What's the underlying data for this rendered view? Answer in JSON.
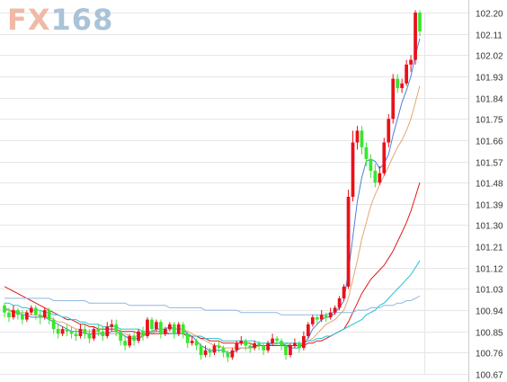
{
  "watermark": {
    "prefix": "FX",
    "digits": "168"
  },
  "colors": {
    "up": "#e8111b",
    "down": "#39e62e",
    "grid": "#e6e6e6",
    "axis_text": "#333333",
    "ma_blue": "#4f7fd6",
    "ma_orange": "#e3a673",
    "ma_red": "#e01b1b",
    "ma_cyan": "#25c2d6",
    "ma_lightblue": "#90b7e3"
  },
  "chart_data": {
    "type": "candlestick",
    "title": "",
    "y_ticks": [
      "102.20",
      "102.11",
      "102.02",
      "101.93",
      "101.84",
      "101.75",
      "101.66",
      "101.57",
      "101.48",
      "101.39",
      "101.30",
      "101.21",
      "101.12",
      "101.03",
      "100.94",
      "100.85",
      "100.76",
      "100.67"
    ],
    "ylim": [
      100.67,
      102.2
    ],
    "grid": true,
    "x_count": 95,
    "candles": [
      [
        100.96,
        100.93,
        100.91,
        100.97
      ],
      [
        100.93,
        100.91,
        100.89,
        100.95
      ],
      [
        100.91,
        100.94,
        100.9,
        100.96
      ],
      [
        100.94,
        100.92,
        100.9,
        100.95
      ],
      [
        100.92,
        100.9,
        100.88,
        100.94
      ],
      [
        100.9,
        100.93,
        100.89,
        100.94
      ],
      [
        100.93,
        100.95,
        100.92,
        100.96
      ],
      [
        100.95,
        100.92,
        100.9,
        100.96
      ],
      [
        100.92,
        100.91,
        100.88,
        100.94
      ],
      [
        100.91,
        100.94,
        100.9,
        100.95
      ],
      [
        100.94,
        100.9,
        100.88,
        100.95
      ],
      [
        100.9,
        100.86,
        100.84,
        100.91
      ],
      [
        100.86,
        100.84,
        100.82,
        100.88
      ],
      [
        100.84,
        100.86,
        100.83,
        100.87
      ],
      [
        100.86,
        100.85,
        100.83,
        100.88
      ],
      [
        100.85,
        100.84,
        100.82,
        100.87
      ],
      [
        100.84,
        100.83,
        100.81,
        100.86
      ],
      [
        100.83,
        100.86,
        100.82,
        100.88
      ],
      [
        100.86,
        100.84,
        100.82,
        100.88
      ],
      [
        100.84,
        100.82,
        100.8,
        100.86
      ],
      [
        100.82,
        100.86,
        100.81,
        100.87
      ],
      [
        100.86,
        100.85,
        100.83,
        100.88
      ],
      [
        100.85,
        100.83,
        100.81,
        100.87
      ],
      [
        100.83,
        100.87,
        100.82,
        100.89
      ],
      [
        100.87,
        100.88,
        100.85,
        100.9
      ],
      [
        100.88,
        100.85,
        100.83,
        100.9
      ],
      [
        100.85,
        100.81,
        100.79,
        100.86
      ],
      [
        100.81,
        100.79,
        100.77,
        100.83
      ],
      [
        100.79,
        100.83,
        100.78,
        100.84
      ],
      [
        100.83,
        100.81,
        100.79,
        100.85
      ],
      [
        100.81,
        100.85,
        100.8,
        100.86
      ],
      [
        100.85,
        100.83,
        100.81,
        100.87
      ],
      [
        100.83,
        100.9,
        100.82,
        100.91
      ],
      [
        100.9,
        100.86,
        100.84,
        100.91
      ],
      [
        100.86,
        100.89,
        100.85,
        100.9
      ],
      [
        100.89,
        100.84,
        100.82,
        100.9
      ],
      [
        100.84,
        100.86,
        100.83,
        100.87
      ],
      [
        100.86,
        100.88,
        100.85,
        100.89
      ],
      [
        100.88,
        100.84,
        100.82,
        100.89
      ],
      [
        100.84,
        100.88,
        100.83,
        100.89
      ],
      [
        100.88,
        100.84,
        100.82,
        100.89
      ],
      [
        100.84,
        100.8,
        100.78,
        100.85
      ],
      [
        100.8,
        100.81,
        100.79,
        100.83
      ],
      [
        100.81,
        100.79,
        100.77,
        100.82
      ],
      [
        100.79,
        100.75,
        100.73,
        100.8
      ],
      [
        100.75,
        100.77,
        100.74,
        100.79
      ],
      [
        100.77,
        100.76,
        100.74,
        100.78
      ],
      [
        100.76,
        100.79,
        100.75,
        100.8
      ],
      [
        100.79,
        100.78,
        100.76,
        100.81
      ],
      [
        100.78,
        100.76,
        100.74,
        100.79
      ],
      [
        100.76,
        100.74,
        100.72,
        100.77
      ],
      [
        100.74,
        100.77,
        100.73,
        100.78
      ],
      [
        100.77,
        100.8,
        100.76,
        100.81
      ],
      [
        100.8,
        100.81,
        100.79,
        100.83
      ],
      [
        100.81,
        100.79,
        100.77,
        100.82
      ],
      [
        100.79,
        100.78,
        100.76,
        100.8
      ],
      [
        100.78,
        100.8,
        100.77,
        100.81
      ],
      [
        100.8,
        100.79,
        100.77,
        100.81
      ],
      [
        100.79,
        100.77,
        100.75,
        100.8
      ],
      [
        100.77,
        100.8,
        100.76,
        100.81
      ],
      [
        100.8,
        100.82,
        100.79,
        100.84
      ],
      [
        100.82,
        100.81,
        100.79,
        100.83
      ],
      [
        100.81,
        100.79,
        100.77,
        100.82
      ],
      [
        100.79,
        100.75,
        100.73,
        100.8
      ],
      [
        100.75,
        100.79,
        100.74,
        100.8
      ],
      [
        100.79,
        100.8,
        100.78,
        100.82
      ],
      [
        100.8,
        100.78,
        100.76,
        100.81
      ],
      [
        100.78,
        100.83,
        100.77,
        100.85
      ],
      [
        100.83,
        100.88,
        100.82,
        100.89
      ],
      [
        100.88,
        100.91,
        100.87,
        100.92
      ],
      [
        100.91,
        100.9,
        100.88,
        100.92
      ],
      [
        100.9,
        100.92,
        100.89,
        100.94
      ],
      [
        100.92,
        100.91,
        100.89,
        100.93
      ],
      [
        100.91,
        100.93,
        100.9,
        100.95
      ],
      [
        100.93,
        100.95,
        100.92,
        100.96
      ],
      [
        100.95,
        100.99,
        100.94,
        101.0
      ],
      [
        100.99,
        101.04,
        100.98,
        101.05
      ],
      [
        101.04,
        101.42,
        101.03,
        101.45
      ],
      [
        101.42,
        101.65,
        101.4,
        101.7
      ],
      [
        101.65,
        101.7,
        101.62,
        101.72
      ],
      [
        101.7,
        101.63,
        101.6,
        101.72
      ],
      [
        101.63,
        101.58,
        101.55,
        101.65
      ],
      [
        101.58,
        101.53,
        101.5,
        101.6
      ],
      [
        101.53,
        101.48,
        101.46,
        101.56
      ],
      [
        101.48,
        101.52,
        101.47,
        101.55
      ],
      [
        101.52,
        101.65,
        101.51,
        101.67
      ],
      [
        101.65,
        101.75,
        101.63,
        101.77
      ],
      [
        101.75,
        101.92,
        101.73,
        101.94
      ],
      [
        101.92,
        101.88,
        101.86,
        101.94
      ],
      [
        101.88,
        101.9,
        101.86,
        101.92
      ],
      [
        101.9,
        101.98,
        101.89,
        102.0
      ],
      [
        101.98,
        102.0,
        101.95,
        102.02
      ],
      [
        102.0,
        102.2,
        101.98,
        102.21
      ],
      [
        102.2,
        102.12,
        102.1,
        102.21
      ]
    ],
    "moving_averages": [
      {
        "color_key": "ma_blue",
        "values": [
          100.95,
          100.94,
          100.93,
          100.93,
          100.92,
          100.92,
          100.91,
          100.91,
          100.91,
          100.91,
          100.9,
          100.89,
          100.88,
          100.87,
          100.86,
          100.85,
          100.85,
          100.85,
          100.84,
          100.84,
          100.84,
          100.84,
          100.84,
          100.84,
          100.85,
          100.85,
          100.84,
          100.83,
          100.82,
          100.82,
          100.82,
          100.83,
          100.84,
          100.85,
          100.86,
          100.86,
          100.86,
          100.87,
          100.86,
          100.86,
          100.86,
          100.84,
          100.83,
          100.81,
          100.79,
          100.78,
          100.77,
          100.77,
          100.77,
          100.77,
          100.76,
          100.76,
          100.77,
          100.78,
          100.78,
          100.78,
          100.79,
          100.79,
          100.79,
          100.79,
          100.8,
          100.8,
          100.8,
          100.79,
          100.78,
          100.78,
          100.78,
          100.8,
          100.82,
          100.86,
          100.88,
          100.9,
          100.91,
          100.91,
          100.93,
          100.95,
          100.98,
          101.1,
          101.25,
          101.4,
          101.5,
          101.57,
          101.58,
          101.57,
          101.54,
          101.56,
          101.6,
          101.68,
          101.75,
          101.82,
          101.87,
          101.93,
          102.02,
          102.09
        ]
      },
      {
        "color_key": "ma_orange",
        "values": [
          100.94,
          100.94,
          100.94,
          100.93,
          100.93,
          100.93,
          100.92,
          100.92,
          100.92,
          100.91,
          100.91,
          100.9,
          100.89,
          100.89,
          100.88,
          100.87,
          100.86,
          100.86,
          100.85,
          100.85,
          100.85,
          100.85,
          100.84,
          100.84,
          100.84,
          100.84,
          100.84,
          100.84,
          100.83,
          100.83,
          100.83,
          100.83,
          100.84,
          100.84,
          100.85,
          100.85,
          100.85,
          100.86,
          100.86,
          100.86,
          100.86,
          100.85,
          100.84,
          100.83,
          100.82,
          100.81,
          100.8,
          100.79,
          100.79,
          100.78,
          100.78,
          100.78,
          100.78,
          100.78,
          100.78,
          100.78,
          100.78,
          100.79,
          100.79,
          100.79,
          100.79,
          100.8,
          100.8,
          100.8,
          100.79,
          100.79,
          100.79,
          100.8,
          100.81,
          100.82,
          100.84,
          100.86,
          100.88,
          100.89,
          100.9,
          100.92,
          100.94,
          100.99,
          101.07,
          101.15,
          101.24,
          101.31,
          101.38,
          101.43,
          101.47,
          101.51,
          101.55,
          101.59,
          101.63,
          101.66,
          101.7,
          101.75,
          101.82,
          101.89
        ]
      },
      {
        "color_key": "ma_red",
        "values": [
          101.04,
          101.03,
          101.02,
          101.01,
          101.0,
          100.99,
          100.98,
          100.97,
          100.96,
          100.95,
          100.94,
          100.93,
          100.92,
          100.91,
          100.9,
          100.9,
          100.89,
          100.88,
          100.88,
          100.87,
          100.87,
          100.86,
          100.86,
          100.86,
          100.86,
          100.86,
          100.85,
          100.85,
          100.85,
          100.85,
          100.84,
          100.84,
          100.84,
          100.84,
          100.84,
          100.84,
          100.84,
          100.84,
          100.84,
          100.84,
          100.84,
          100.83,
          100.83,
          100.83,
          100.82,
          100.82,
          100.81,
          100.81,
          100.81,
          100.8,
          100.8,
          100.8,
          100.8,
          100.8,
          100.8,
          100.8,
          100.79,
          100.79,
          100.79,
          100.79,
          100.79,
          100.79,
          100.79,
          100.79,
          100.79,
          100.79,
          100.79,
          100.79,
          100.8,
          100.8,
          100.81,
          100.81,
          100.82,
          100.83,
          100.84,
          100.85,
          100.86,
          100.89,
          100.93,
          100.97,
          101.01,
          101.04,
          101.07,
          101.09,
          101.11,
          101.13,
          101.16,
          101.19,
          101.23,
          101.27,
          101.31,
          101.36,
          101.42,
          101.48
        ]
      },
      {
        "color_key": "ma_cyan",
        "values": [
          100.97,
          100.97,
          100.96,
          100.96,
          100.95,
          100.95,
          100.94,
          100.94,
          100.94,
          100.93,
          100.93,
          100.92,
          100.92,
          100.91,
          100.91,
          100.9,
          100.9,
          100.89,
          100.89,
          100.88,
          100.88,
          100.88,
          100.87,
          100.87,
          100.87,
          100.87,
          100.86,
          100.86,
          100.86,
          100.86,
          100.86,
          100.85,
          100.85,
          100.85,
          100.85,
          100.85,
          100.85,
          100.84,
          100.84,
          100.84,
          100.84,
          100.84,
          100.83,
          100.83,
          100.83,
          100.82,
          100.82,
          100.82,
          100.82,
          100.81,
          100.81,
          100.81,
          100.81,
          100.81,
          100.81,
          100.81,
          100.81,
          100.8,
          100.8,
          100.8,
          100.8,
          100.8,
          100.8,
          100.8,
          100.8,
          100.8,
          100.8,
          100.8,
          100.81,
          100.81,
          100.82,
          100.82,
          100.83,
          100.83,
          100.84,
          100.85,
          100.86,
          100.87,
          100.88,
          100.89,
          100.9,
          100.92,
          100.93,
          100.94,
          100.96,
          100.97,
          100.99,
          101.01,
          101.03,
          101.05,
          101.07,
          101.09,
          101.12,
          101.15
        ]
      },
      {
        "color_key": "ma_lightblue",
        "values": [
          100.99,
          100.99,
          100.99,
          100.99,
          100.99,
          100.99,
          100.99,
          100.99,
          100.99,
          100.99,
          100.99,
          100.98,
          100.98,
          100.98,
          100.98,
          100.98,
          100.98,
          100.98,
          100.98,
          100.97,
          100.97,
          100.97,
          100.97,
          100.97,
          100.97,
          100.97,
          100.97,
          100.97,
          100.96,
          100.96,
          100.96,
          100.96,
          100.96,
          100.96,
          100.96,
          100.96,
          100.96,
          100.95,
          100.95,
          100.95,
          100.95,
          100.95,
          100.95,
          100.95,
          100.95,
          100.94,
          100.94,
          100.94,
          100.94,
          100.94,
          100.94,
          100.94,
          100.94,
          100.93,
          100.93,
          100.93,
          100.93,
          100.93,
          100.93,
          100.93,
          100.93,
          100.93,
          100.92,
          100.92,
          100.92,
          100.92,
          100.92,
          100.92,
          100.92,
          100.92,
          100.92,
          100.92,
          100.92,
          100.93,
          100.93,
          100.93,
          100.93,
          100.93,
          100.93,
          100.94,
          100.94,
          100.94,
          100.95,
          100.95,
          100.95,
          100.96,
          100.96,
          100.96,
          100.97,
          100.97,
          100.98,
          100.98,
          100.99,
          101.0
        ]
      }
    ]
  }
}
